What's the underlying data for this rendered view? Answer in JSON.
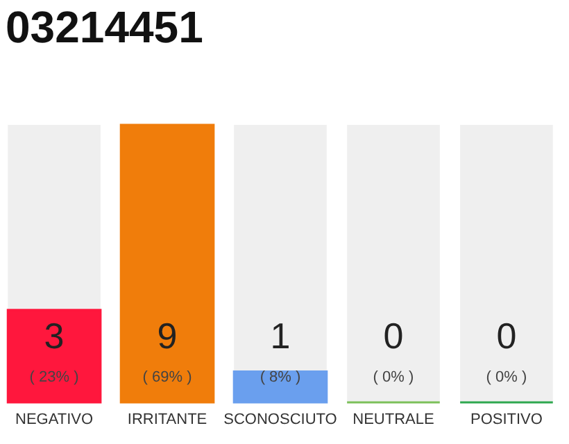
{
  "chart_data": {
    "type": "bar",
    "title": "03214451",
    "categories": [
      "NEGATIVO",
      "IRRITANTE",
      "SCONOSCIUTO",
      "NEUTRALE",
      "POSITIVO"
    ],
    "values": [
      3,
      9,
      1,
      0,
      0
    ],
    "colors": [
      "#ff173d",
      "#f07d0b",
      "#6a9fee",
      "#7cc05a",
      "#2fa84f"
    ],
    "data_labels": true,
    "annotations": [
      "( 23% )",
      "( 69% )",
      "( 8% )",
      "( 0% )",
      "( 0% )"
    ],
    "grid": false
  }
}
